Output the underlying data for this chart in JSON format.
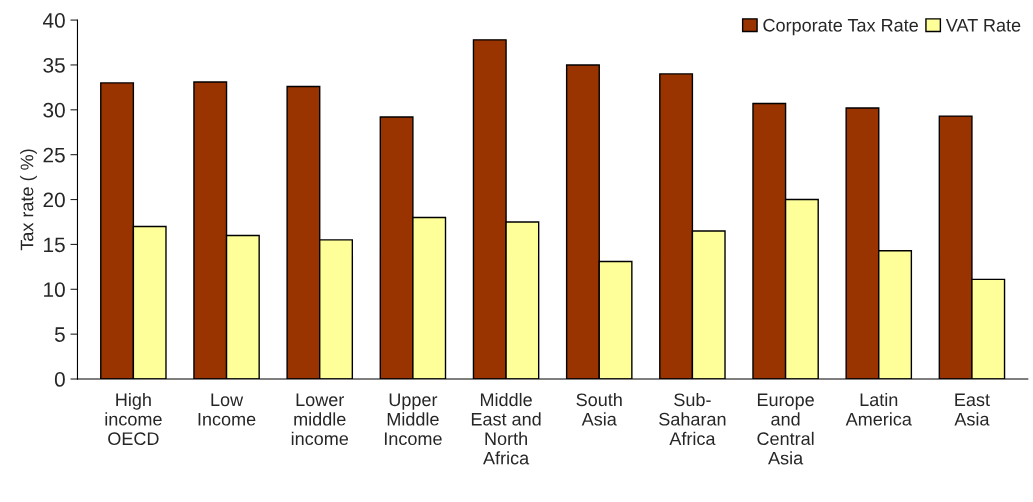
{
  "chart_data": {
    "type": "bar",
    "ylabel": "Tax rate ( %)",
    "categories": [
      "High\nincome\nOECD",
      "Low\nIncome",
      "Lower\nmiddle\nincome",
      "Upper\nMiddle\nIncome",
      "Middle\nEast and\nNorth\nAfrica",
      "South\nAsia",
      "Sub-\nSaharan\nAfrica",
      "Europe\nand\nCentral\nAsia",
      "Latin\nAmerica",
      "East\nAsia"
    ],
    "series": [
      {
        "name": "Corporate Tax Rate",
        "color": "#993300",
        "values": [
          33.0,
          33.1,
          32.6,
          29.2,
          37.8,
          35.0,
          34.0,
          30.7,
          30.2,
          29.3
        ]
      },
      {
        "name": "VAT Rate",
        "color": "#ffff99",
        "values": [
          17.0,
          16.0,
          15.5,
          18.0,
          17.5,
          13.1,
          16.5,
          20.0,
          14.3,
          11.1
        ]
      }
    ],
    "ylim": [
      0,
      40
    ],
    "yticks": [
      0,
      5,
      10,
      15,
      20,
      25,
      30,
      35,
      40
    ],
    "grid": false,
    "legend": "top right"
  }
}
